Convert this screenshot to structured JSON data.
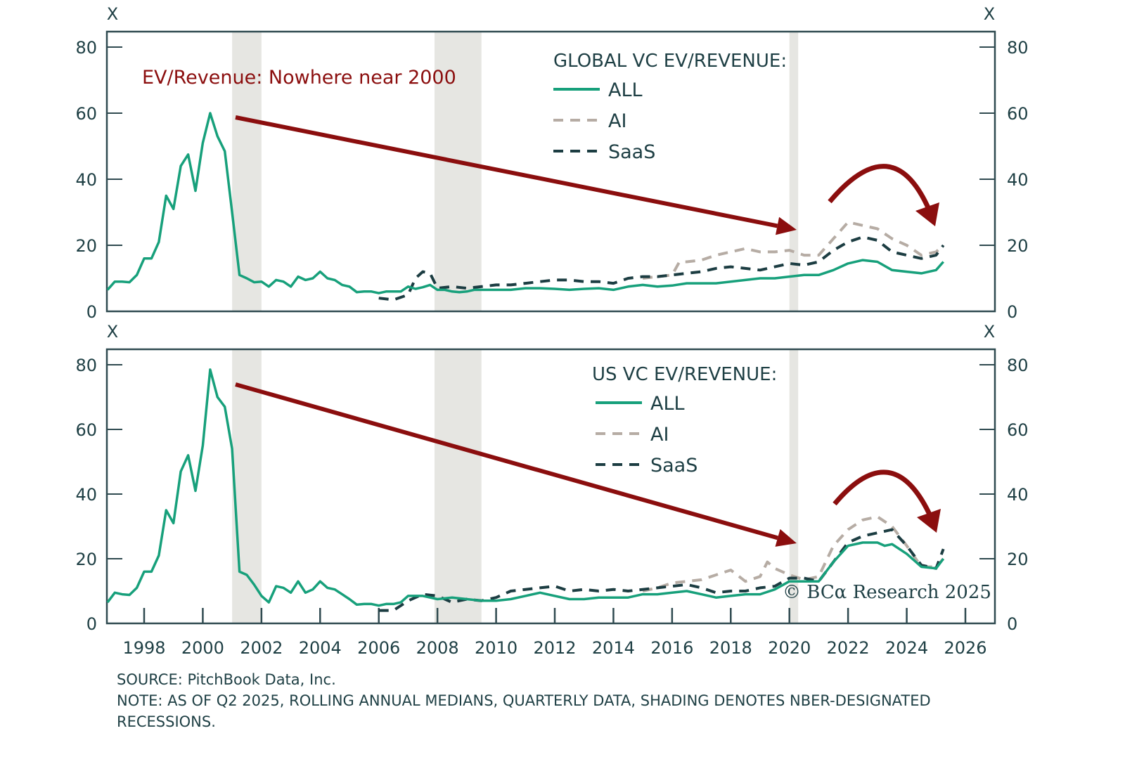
{
  "chart_data": [
    {
      "type": "line",
      "panel": "top",
      "title": "GLOBAL VC EV/REVENUE:",
      "annotation": "EV/Revenue: Nowhere near 2000",
      "ylabel_left": "X",
      "ylabel_right": "X",
      "ylim": [
        0,
        80
      ],
      "yticks": [
        0,
        20,
        40,
        60,
        80
      ],
      "xlim": [
        1996.5,
        2026.8
      ],
      "grid": false,
      "legend_position": "top-center",
      "recessions": [
        [
          2001.0,
          2002.0
        ],
        [
          2007.9,
          2009.5
        ],
        [
          2020.0,
          2020.3
        ]
      ],
      "series": [
        {
          "name": "ALL",
          "style": "solid",
          "x": [
            1996.75,
            1997.0,
            1997.25,
            1997.5,
            1997.75,
            1998.0,
            1998.25,
            1998.5,
            1998.75,
            1999.0,
            1999.25,
            1999.5,
            1999.75,
            2000.0,
            2000.25,
            2000.5,
            2000.75,
            2001.0,
            2001.25,
            2001.5,
            2001.75,
            2002.0,
            2002.25,
            2002.5,
            2002.75,
            2003.0,
            2003.25,
            2003.5,
            2003.75,
            2004.0,
            2004.25,
            2004.5,
            2004.75,
            2005.0,
            2005.25,
            2005.5,
            2005.75,
            2006.0,
            2006.25,
            2006.5,
            2006.75,
            2007.0,
            2007.25,
            2007.5,
            2007.75,
            2008.0,
            2008.25,
            2008.5,
            2008.75,
            2009.0,
            2009.25,
            2009.5,
            2009.75,
            2010.0,
            2010.5,
            2011.0,
            2011.5,
            2012.0,
            2012.5,
            2013.0,
            2013.5,
            2014.0,
            2014.5,
            2015.0,
            2015.5,
            2016.0,
            2016.5,
            2017.0,
            2017.5,
            2018.0,
            2018.5,
            2019.0,
            2019.5,
            2020.0,
            2020.5,
            2021.0,
            2021.5,
            2022.0,
            2022.5,
            2023.0,
            2023.5,
            2024.0,
            2024.5,
            2025.0,
            2025.25
          ],
          "values": [
            6.5,
            9,
            9,
            8.8,
            11,
            16,
            16,
            21,
            35,
            31,
            44,
            47.5,
            36.5,
            51,
            60,
            53,
            48.5,
            30,
            11,
            10,
            8.8,
            9,
            7.5,
            9.5,
            9,
            7.5,
            10.5,
            9.5,
            10,
            12,
            10,
            9.5,
            8,
            7.5,
            5.8,
            6,
            6,
            5.5,
            6,
            6,
            6,
            7.5,
            6.8,
            7.3,
            8,
            6.5,
            6.5,
            6,
            5.8,
            6,
            6.5,
            6.5,
            6.5,
            6.5,
            6.5,
            7,
            7,
            6.8,
            6.5,
            6.8,
            7,
            6.5,
            7.5,
            8,
            7.5,
            7.8,
            8.5,
            8.5,
            8.5,
            9,
            9.5,
            10,
            10,
            10.5,
            11,
            11,
            12.5,
            14.5,
            15.5,
            15,
            12.5,
            12,
            11.5,
            12.5,
            15
          ]
        },
        {
          "name": "AI",
          "style": "dashed",
          "x": [
            2015.0,
            2015.5,
            2016.0,
            2016.25,
            2016.5,
            2017.0,
            2017.5,
            2018.0,
            2018.5,
            2019.0,
            2019.5,
            2020.0,
            2020.5,
            2021.0,
            2021.5,
            2022.0,
            2022.5,
            2023.0,
            2023.5,
            2024.0,
            2024.5,
            2025.0,
            2025.25
          ],
          "values": [
            10,
            10.5,
            11,
            15,
            15,
            15.5,
            17,
            18,
            19,
            18,
            18,
            18.5,
            17,
            17,
            22,
            27,
            26,
            25,
            22,
            20,
            17,
            18,
            20
          ]
        },
        {
          "name": "SaaS",
          "style": "dashed",
          "x": [
            2006.0,
            2006.5,
            2007.0,
            2007.25,
            2007.5,
            2007.75,
            2008.0,
            2008.5,
            2009.0,
            2009.5,
            2010.0,
            2010.5,
            2011.0,
            2011.5,
            2012.0,
            2012.5,
            2013.0,
            2013.5,
            2014.0,
            2014.5,
            2015.0,
            2015.5,
            2016.0,
            2016.5,
            2017.0,
            2017.5,
            2018.0,
            2018.5,
            2019.0,
            2019.5,
            2020.0,
            2020.5,
            2021.0,
            2021.5,
            2022.0,
            2022.5,
            2023.0,
            2023.5,
            2024.0,
            2024.5,
            2025.0,
            2025.25
          ],
          "values": [
            4,
            3.5,
            5,
            10,
            12,
            11.5,
            7,
            7.5,
            7,
            7.5,
            8,
            8,
            8.5,
            9,
            9.5,
            9.5,
            9,
            9,
            8.5,
            10,
            10.5,
            10.5,
            11,
            11.5,
            12,
            13,
            13.5,
            13,
            12.5,
            13.5,
            14.5,
            14,
            15,
            18.5,
            21,
            22.5,
            21.5,
            18,
            17,
            16,
            17,
            20
          ]
        }
      ]
    },
    {
      "type": "line",
      "panel": "bottom",
      "title": "US VC EV/REVENUE:",
      "ylabel_left": "X",
      "ylabel_right": "X",
      "ylim": [
        0,
        80
      ],
      "yticks": [
        0,
        20,
        40,
        60,
        80
      ],
      "xlim": [
        1996.5,
        2026.8
      ],
      "xticks": [
        1998,
        2000,
        2002,
        2004,
        2006,
        2008,
        2010,
        2012,
        2014,
        2016,
        2018,
        2020,
        2022,
        2024,
        2026
      ],
      "grid": false,
      "legend_position": "top-center",
      "recessions": [
        [
          2001.0,
          2002.0
        ],
        [
          2007.9,
          2009.5
        ],
        [
          2020.0,
          2020.3
        ]
      ],
      "series": [
        {
          "name": "ALL",
          "style": "solid",
          "x": [
            1996.75,
            1997.0,
            1997.25,
            1997.5,
            1997.75,
            1998.0,
            1998.25,
            1998.5,
            1998.75,
            1999.0,
            1999.25,
            1999.5,
            1999.75,
            2000.0,
            2000.25,
            2000.5,
            2000.75,
            2001.0,
            2001.25,
            2001.5,
            2001.75,
            2002.0,
            2002.25,
            2002.5,
            2002.75,
            2003.0,
            2003.25,
            2003.5,
            2003.75,
            2004.0,
            2004.25,
            2004.5,
            2004.75,
            2005.0,
            2005.25,
            2005.5,
            2005.75,
            2006.0,
            2006.25,
            2006.5,
            2006.75,
            2007.0,
            2007.25,
            2007.5,
            2007.75,
            2008.0,
            2008.5,
            2009.0,
            2009.5,
            2010.0,
            2010.5,
            2011.0,
            2011.5,
            2012.0,
            2012.5,
            2013.0,
            2013.5,
            2014.0,
            2014.5,
            2015.0,
            2015.5,
            2016.0,
            2016.5,
            2017.0,
            2017.5,
            2018.0,
            2018.5,
            2019.0,
            2019.5,
            2020.0,
            2020.5,
            2021.0,
            2021.5,
            2022.0,
            2022.5,
            2023.0,
            2023.25,
            2023.5,
            2024.0,
            2024.5,
            2025.0,
            2025.25
          ],
          "values": [
            6.5,
            9.5,
            9,
            8.8,
            11,
            16,
            16,
            21,
            35,
            31,
            47,
            52,
            41,
            55,
            78.5,
            70,
            67,
            54,
            16,
            15,
            12,
            8.5,
            6.5,
            11.5,
            11,
            9.5,
            13,
            9.5,
            10.5,
            13,
            11,
            10.5,
            9,
            7.5,
            5.8,
            6,
            6,
            5.5,
            6,
            6,
            6.5,
            8.5,
            8.5,
            8.5,
            8,
            7.5,
            8,
            7.5,
            7,
            7,
            7.5,
            8.5,
            9.5,
            8.5,
            7.5,
            7.5,
            8,
            8,
            8,
            9,
            9,
            9.5,
            10,
            9,
            8,
            8.5,
            9,
            9,
            10.5,
            13,
            13,
            13,
            19,
            24,
            25,
            25,
            24,
            24.5,
            21.5,
            17.5,
            17,
            20
          ]
        },
        {
          "name": "AI",
          "style": "dashed",
          "x": [
            2015.0,
            2015.5,
            2016.0,
            2016.5,
            2017.0,
            2017.5,
            2018.0,
            2018.5,
            2019.0,
            2019.25,
            2019.5,
            2020.0,
            2020.5,
            2021.0,
            2021.5,
            2022.0,
            2022.5,
            2023.0,
            2023.5,
            2024.0,
            2024.5,
            2025.0,
            2025.25
          ],
          "values": [
            10,
            11,
            12.5,
            13,
            13.5,
            15,
            16.5,
            13,
            14.5,
            19,
            17,
            15,
            13.5,
            14.5,
            24,
            29,
            32,
            33,
            30,
            24,
            17.5,
            17.5,
            20
          ]
        },
        {
          "name": "SaaS",
          "style": "dashed",
          "x": [
            2006.0,
            2006.5,
            2007.0,
            2007.5,
            2008.0,
            2008.5,
            2009.0,
            2009.5,
            2010.0,
            2010.5,
            2011.0,
            2011.5,
            2012.0,
            2012.5,
            2013.0,
            2013.5,
            2014.0,
            2014.5,
            2015.0,
            2015.5,
            2016.0,
            2016.5,
            2017.0,
            2017.5,
            2018.0,
            2018.5,
            2019.0,
            2019.5,
            2020.0,
            2020.5,
            2021.0,
            2021.5,
            2022.0,
            2022.5,
            2023.0,
            2023.5,
            2024.0,
            2024.5,
            2025.0,
            2025.25
          ],
          "values": [
            4,
            4,
            7,
            9,
            8.5,
            6.5,
            7.5,
            7,
            8,
            10,
            10.5,
            11,
            11.5,
            10,
            10.5,
            10,
            10.5,
            10,
            10.5,
            11,
            11.5,
            12,
            11,
            9.5,
            10,
            10,
            11,
            11.5,
            14,
            14,
            13,
            19,
            25,
            27,
            28,
            29,
            24,
            18,
            17,
            23
          ]
        }
      ]
    }
  ],
  "colors": {
    "all": "#17a07b",
    "ai": "#b6aca4",
    "saas": "#1c3d42",
    "axis": "#2f4a50",
    "annotation": "#8b0e0e",
    "recession": "#e6e6e2"
  },
  "annotations": {
    "copyright": "© BCα Research 2025"
  },
  "footer": {
    "source": "SOURCE: PitchBook Data, Inc.",
    "note": "NOTE: AS OF Q2 2025, ROLLING ANNUAL MEDIANS, QUARTERLY DATA, SHADING DENOTES NBER-DESIGNATED RECESSIONS."
  }
}
